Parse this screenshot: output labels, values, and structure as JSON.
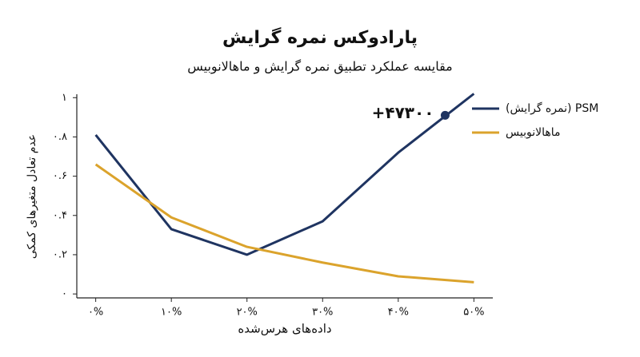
{
  "chart_data": {
    "type": "line",
    "title": "پارادوکس نمره گرایش",
    "subtitle": "مقایسه عملکرد تطبیق نمره گرایش و ماهالانوبیس",
    "x_label": "داده‌های هرس‌شده",
    "y_label": "عدم تعادل متغیرهای کمکی",
    "x": [
      0,
      10,
      20,
      30,
      40,
      50
    ],
    "xlim": [
      -2.5,
      52.5
    ],
    "xticks": [
      {
        "value": 0,
        "label": "۰%"
      },
      {
        "value": 10,
        "label": "۱۰%"
      },
      {
        "value": 20,
        "label": "۲۰%"
      },
      {
        "value": 30,
        "label": "۳۰%"
      },
      {
        "value": 40,
        "label": "۴۰%"
      },
      {
        "value": 50,
        "label": "۵۰%"
      }
    ],
    "ylim": [
      -0.02,
      1.05
    ],
    "yticks": [
      {
        "value": 0,
        "label": "۰"
      },
      {
        "value": 0.2,
        "label": "۰.۲"
      },
      {
        "value": 0.4,
        "label": "۰.۴"
      },
      {
        "value": 0.6,
        "label": "۰.۶"
      },
      {
        "value": 0.8,
        "label": "۰.۸"
      },
      {
        "value": 1,
        "label": "۱"
      }
    ],
    "series": [
      {
        "name": "PSM (نمره گرایش)",
        "color": "#1f3461",
        "values": [
          0.81,
          0.33,
          0.2,
          0.37,
          0.72,
          1.02
        ]
      },
      {
        "name": "ماهالانوبیس",
        "color": "#dba32c",
        "values": [
          0.66,
          0.39,
          0.24,
          0.16,
          0.09,
          0.06
        ]
      }
    ],
    "annotation": {
      "text": "+۴۷۳۰۰",
      "x": 46.2,
      "y": 0.91
    },
    "legend": "top-right"
  }
}
